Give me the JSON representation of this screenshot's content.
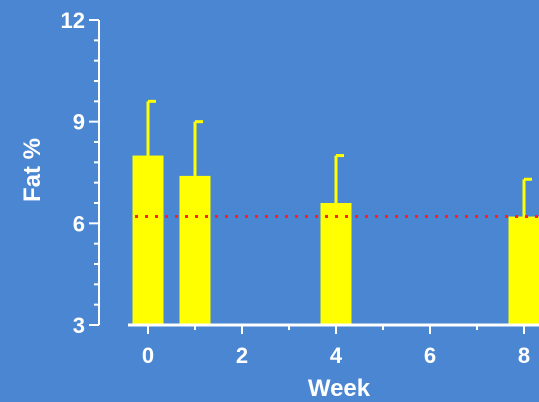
{
  "chart_data": {
    "type": "bar",
    "xlabel": "Week",
    "ylabel": "Fat %",
    "xlim": [
      -0.5,
      8.4
    ],
    "ylim": [
      3,
      12
    ],
    "x_ticks": [
      0,
      2,
      4,
      6,
      8
    ],
    "y_ticks": [
      3,
      6,
      9,
      12
    ],
    "x_minor_ticks": [
      1,
      3,
      5,
      7
    ],
    "y_minor_ticks": [
      3.6,
      4.2,
      4.8,
      5.4,
      6.6,
      7.2,
      7.8,
      8.4,
      9.6,
      10.2,
      10.8,
      11.4
    ],
    "grid": false,
    "bars": [
      {
        "x": 0,
        "value": 8.0,
        "error": 1.6
      },
      {
        "x": 1,
        "value": 7.4,
        "error": 1.6
      },
      {
        "x": 4,
        "value": 6.6,
        "error": 1.4
      },
      {
        "x": 8,
        "value": 6.2,
        "error": 1.1
      }
    ],
    "reference_line": {
      "y": 6.2,
      "style": "dotted",
      "color": "#ff2020"
    },
    "colors": {
      "background": "#4a86d1",
      "bar": "#ffff00",
      "error_bar": "#ffff00",
      "axis": "#ffffff",
      "text": "#ffffff"
    }
  }
}
